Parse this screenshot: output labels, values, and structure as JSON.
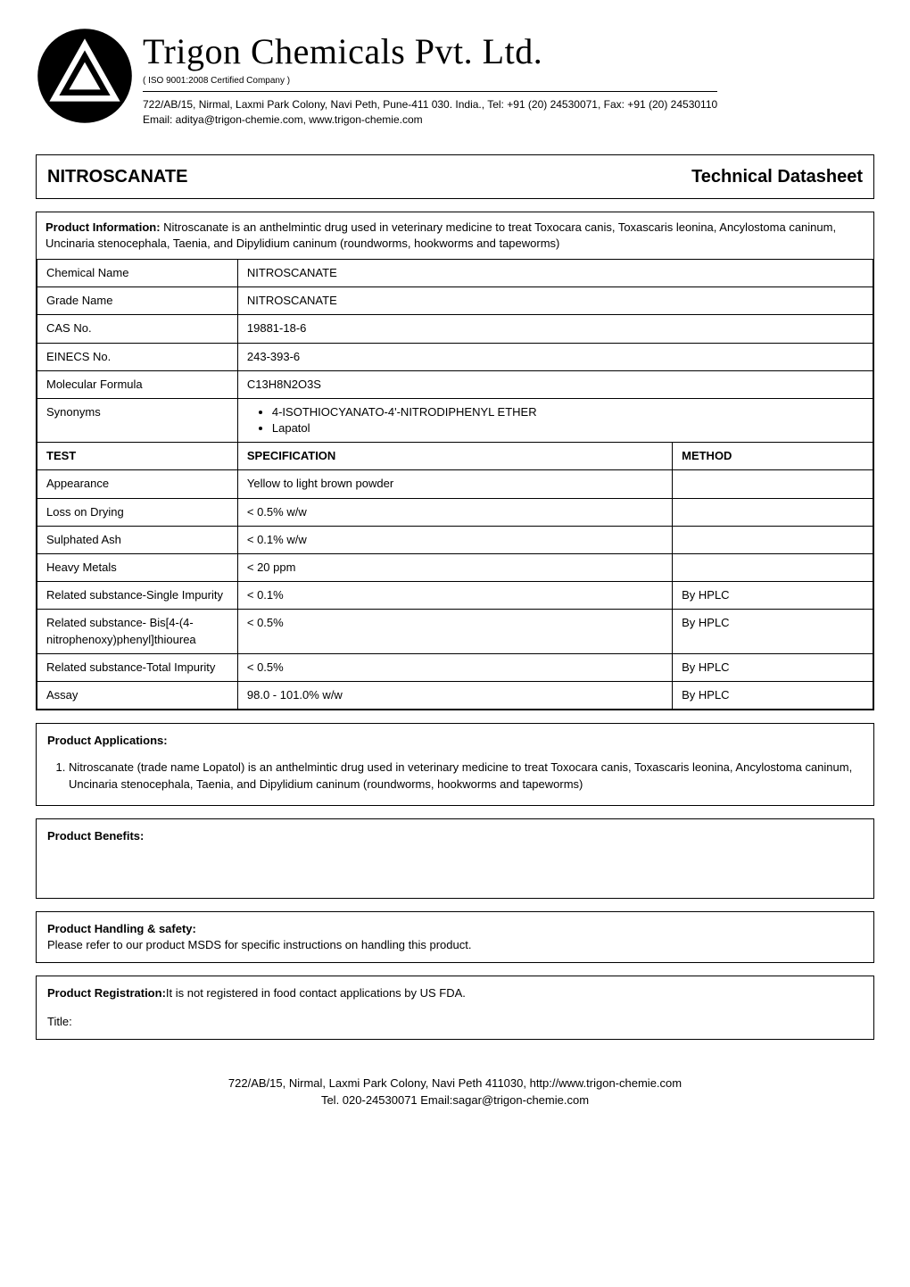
{
  "header": {
    "company_name": "Trigon Chemicals Pvt. Ltd.",
    "cert_line": "( ISO 9001:2008 Certified Company )",
    "address_line": "722/AB/15, Nirmal, Laxmi Park Colony, Navi Peth, Pune-411 030. India., Tel: +91 (20) 24530071, Fax: +91 (20) 24530110",
    "email_line": "Email: aditya@trigon-chemie.com, www.trigon-chemie.com"
  },
  "title_box": {
    "product_code": "NITROSCANATE",
    "datasheet_label": "Technical Datasheet"
  },
  "product_info": {
    "label": "Product Information:",
    "text": " Nitroscanate is an anthelmintic drug used in veterinary medicine to treat Toxocara canis, Toxascaris leonina, Ancylostoma caninum, Uncinaria stenocephala, Taenia, and Dipylidium caninum (roundworms, hookworms and tapeworms)"
  },
  "identity_rows": [
    {
      "label": "Chemical Name",
      "value": "NITROSCANATE"
    },
    {
      "label": "Grade Name",
      "value": "NITROSCANATE"
    },
    {
      "label": "CAS No.",
      "value": "19881-18-6"
    },
    {
      "label": "EINECS No.",
      "value": "243-393-6"
    },
    {
      "label": "Molecular Formula",
      "value": "C13H8N2O3S"
    }
  ],
  "synonyms": {
    "label": "Synonyms",
    "items": [
      "4-ISOTHIOCYANATO-4'-NITRODIPHENYL ETHER",
      "Lapatol"
    ]
  },
  "spec_header": {
    "test": "TEST",
    "spec": "SPECIFICATION",
    "method": "METHOD"
  },
  "spec_rows": [
    {
      "test": "Appearance",
      "spec": "Yellow to light brown powder",
      "method": ""
    },
    {
      "test": "Loss on Drying",
      "spec": "< 0.5% w/w",
      "method": ""
    },
    {
      "test": "Sulphated Ash",
      "spec": "< 0.1% w/w",
      "method": ""
    },
    {
      "test": "Heavy Metals",
      "spec": "< 20 ppm",
      "method": ""
    },
    {
      "test": "Related substance-Single Impurity",
      "spec": "< 0.1%",
      "method": "By HPLC"
    },
    {
      "test": "Related substance- Bis[4-(4-nitrophenoxy)phenyl]thiourea",
      "spec": "< 0.5%",
      "method": "By HPLC"
    },
    {
      "test": "Related substance-Total Impurity",
      "spec": "< 0.5%",
      "method": "By HPLC"
    },
    {
      "test": "Assay",
      "spec": "98.0 - 101.0% w/w",
      "method": "By HPLC"
    }
  ],
  "applications": {
    "heading": "Product Applications:",
    "items": [
      "Nitroscanate (trade name Lopatol) is an anthelmintic drug used in veterinary medicine to treat Toxocara canis, Toxascaris leonina, Ancylostoma caninum, Uncinaria stenocephala, Taenia, and Dipylidium caninum (roundworms, hookworms and tapeworms)"
    ]
  },
  "benefits": {
    "heading": "Product Benefits:"
  },
  "handling": {
    "heading": "Product Handling & safety:",
    "text": "Please refer to our product MSDS for specific instructions on handling this product."
  },
  "registration": {
    "heading": "Product Registration:",
    "text": "It is not registered in food contact applications by US FDA.",
    "title_label": "Title:"
  },
  "footer": {
    "line1": "722/AB/15, Nirmal, Laxmi Park Colony, Navi Peth 411030, http://www.trigon-chemie.com",
    "line2": "Tel. 020-24530071 Email:sagar@trigon-chemie.com"
  },
  "colors": {
    "text": "#000000",
    "bg": "#ffffff",
    "border": "#000000",
    "logo_outer": "#000000",
    "logo_inner": "#ffffff"
  }
}
